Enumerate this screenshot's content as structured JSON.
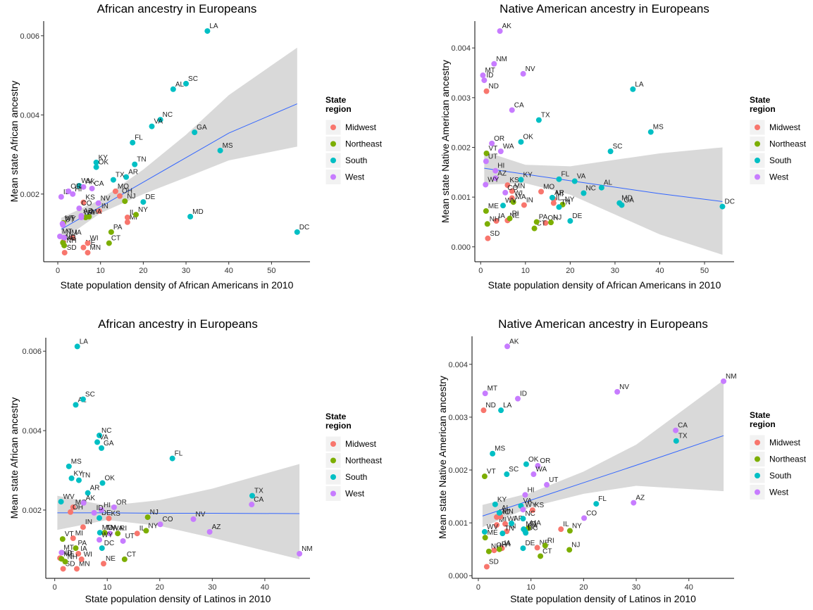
{
  "chart_data": [
    {
      "type": "scatter",
      "title": "African ancestry in Europeans",
      "x_label": "State population density of African Americans in 2010",
      "y_label": "Mean state African ancestry",
      "legend_title": "State region",
      "xlim": [
        -3.3,
        59
      ],
      "xticks": [
        0,
        10,
        20,
        30,
        40,
        50
      ],
      "ylim": [
        0.00029,
        0.00637
      ],
      "yticks": [
        0.002,
        0.004,
        0.006
      ],
      "series": [
        {
          "name": "Midwest",
          "color": "#F8766D",
          "labels": [
            "IL",
            "IN",
            "IA",
            "KS",
            "MI",
            "MN",
            "MO",
            "NE",
            "ND",
            "OH",
            "SD",
            "WI"
          ],
          "x": [
            16.3,
            9.7,
            3.5,
            6,
            16.3,
            7,
            13.5,
            6,
            1.3,
            14.5,
            1.6,
            7
          ],
          "values": [
            0.00141,
            0.00157,
            0.0009,
            0.00179,
            0.00129,
            0.00052,
            0.00207,
            0.00065,
            0.00079,
            0.00195,
            0.00052,
            0.00076
          ]
        },
        {
          "name": "Northeast",
          "color": "#7CAE00",
          "labels": [
            "CT",
            "ME",
            "MA",
            "NH",
            "NJ",
            "NY",
            "PA",
            "RI",
            "VT"
          ],
          "x": [
            12,
            1.2,
            7.3,
            1.5,
            15.7,
            18.3,
            12.5,
            6.5,
            1.3
          ],
          "values": [
            0.00076,
            0.00077,
            0.00143,
            0.0007,
            0.00182,
            0.00148,
            0.00104,
            0.00141,
            0.00127
          ]
        },
        {
          "name": "South",
          "color": "#00BFC4",
          "labels": [
            "AL",
            "AR",
            "DE",
            "DC",
            "FL",
            "GA",
            "KY",
            "LA",
            "MD",
            "MS",
            "NC",
            "OK",
            "SC",
            "TN",
            "TX",
            "VA",
            "WV"
          ],
          "x": [
            27,
            16,
            20,
            56,
            17.5,
            32,
            9,
            35,
            31,
            38,
            24,
            9,
            30,
            18,
            13,
            22,
            5
          ],
          "values": [
            0.00465,
            0.00243,
            0.0018,
            0.00104,
            0.0033,
            0.00356,
            0.0028,
            0.00612,
            0.00143,
            0.0031,
            0.00388,
            0.00268,
            0.00479,
            0.00275,
            0.00236,
            0.00371,
            0.00221
          ]
        },
        {
          "name": "West",
          "color": "#C77CFF",
          "labels": [
            "AK",
            "AZ",
            "CA",
            "CO",
            "HI",
            "ID",
            "MT",
            "NV",
            "NM",
            "OR",
            "UT",
            "WA",
            "WY"
          ],
          "x": [
            6,
            5.5,
            8,
            5,
            3.5,
            0.8,
            0.5,
            9.5,
            1.5,
            2.5,
            1.2,
            5.5,
            1.1
          ],
          "values": [
            0.00218,
            0.00145,
            0.00214,
            0.00164,
            0.002,
            0.00193,
            0.00093,
            0.00177,
            0.0009,
            0.00207,
            0.00122,
            0.00141,
            0.00125
          ]
        }
      ],
      "fit": {
        "x": [
          0.8,
          10,
          20,
          30,
          40,
          56
        ],
        "y": [
          0.00111,
          0.00168,
          0.0023,
          0.00292,
          0.00354,
          0.00428
        ],
        "lower": [
          0.00082,
          0.00152,
          0.002,
          0.00242,
          0.00285,
          0.0032
        ],
        "upper": [
          0.0014,
          0.00186,
          0.00262,
          0.0035,
          0.0045,
          0.0057
        ]
      }
    },
    {
      "type": "scatter",
      "title": "Native American ancestry in Europeans",
      "x_label": "State population density of African Americans in 2010",
      "y_label": "Mean state Native American ancestry",
      "legend_title": "State region",
      "xlim": [
        -1.3,
        56.6
      ],
      "xticks": [
        0,
        10,
        20,
        30,
        40,
        50
      ],
      "ylim": [
        -0.0003,
        0.00454
      ],
      "yticks": [
        {
          "value": 0,
          "label": "0.000"
        },
        0.001,
        0.002,
        0.003,
        0.004
      ],
      "series": [
        {
          "name": "Midwest",
          "color": "#F8766D",
          "labels": [
            "IL",
            "IN",
            "IA",
            "KS",
            "MI",
            "MN",
            "MO",
            "NE",
            "ND",
            "OH",
            "SD",
            "WI"
          ],
          "x": [
            16.3,
            9.7,
            3.5,
            6,
            16.3,
            7,
            13.5,
            6,
            1.3,
            14.5,
            1.6,
            7
          ],
          "values": [
            0.00088,
            0.00084,
            0.00052,
            0.00124,
            0.00096,
            0.00112,
            0.00111,
            0.00053,
            0.00313,
            0.00048,
            0.00017,
            0.00098
          ]
        },
        {
          "name": "Northeast",
          "color": "#7CAE00",
          "labels": [
            "CT",
            "ME",
            "MA",
            "NH",
            "NJ",
            "NY",
            "PA",
            "RI",
            "VT"
          ],
          "x": [
            12,
            1.2,
            7.3,
            1.5,
            15.7,
            18.3,
            12.5,
            6.5,
            1.3
          ],
          "values": [
            0.00037,
            0.00072,
            0.0009,
            0.00046,
            0.00049,
            0.00085,
            0.0005,
            0.00057,
            0.00188
          ]
        },
        {
          "name": "South",
          "color": "#00BFC4",
          "labels": [
            "AL",
            "AR",
            "DE",
            "DC",
            "FL",
            "GA",
            "KY",
            "LA",
            "MD",
            "MS",
            "NC",
            "OK",
            "SC",
            "TN",
            "TX",
            "VA",
            "WV"
          ],
          "x": [
            27,
            16,
            20,
            54,
            17.5,
            31.5,
            9,
            34,
            31,
            38,
            23,
            9,
            29,
            17.5,
            13,
            21,
            5
          ],
          "values": [
            0.00119,
            0.00099,
            0.00052,
            0.00081,
            0.00136,
            0.00084,
            0.00135,
            0.00317,
            0.00088,
            0.00231,
            0.00108,
            0.00211,
            0.00192,
            0.0008,
            0.00255,
            0.00132,
            0.00083
          ]
        },
        {
          "name": "West",
          "color": "#C77CFF",
          "labels": [
            "AK",
            "AZ",
            "CA",
            "CO",
            "HI",
            "ID",
            "MT",
            "NV",
            "NM",
            "OR",
            "UT",
            "WA",
            "WY"
          ],
          "x": [
            4.3,
            3.3,
            7,
            5.5,
            3.3,
            0.8,
            0.5,
            9.5,
            3,
            2.5,
            1.2,
            4.5,
            1.1
          ],
          "values": [
            0.00434,
            0.00138,
            0.00275,
            0.00109,
            0.00153,
            0.00335,
            0.00345,
            0.00348,
            0.00368,
            0.00208,
            0.00172,
            0.00192,
            0.00125
          ]
        }
      ],
      "fit": {
        "x": [
          0.8,
          10,
          20,
          30,
          40,
          54
        ],
        "y": [
          0.00158,
          0.00146,
          0.00133,
          0.0012,
          0.00107,
          0.00091
        ],
        "lower": [
          0.00125,
          0.00128,
          0.00105,
          0.00065,
          0.00025,
          -0.00016
        ],
        "upper": [
          0.00192,
          0.00165,
          0.00162,
          0.00175,
          0.00188,
          0.002
        ]
      }
    },
    {
      "type": "scatter",
      "title": "African ancestry in Europeans",
      "x_label": "State population density of Latinos in 2010",
      "y_label": "Mean state African ancestry",
      "legend_title": "State region",
      "xlim": [
        -1.7,
        48.6
      ],
      "xticks": [
        0,
        10,
        20,
        30,
        40
      ],
      "ylim": [
        0.00028,
        0.00634
      ],
      "yticks": [
        0.002,
        0.004,
        0.006
      ],
      "series": [
        {
          "name": "Midwest",
          "color": "#F8766D",
          "labels": [
            "IL",
            "IN",
            "IA",
            "KS",
            "MI",
            "MN",
            "MO",
            "NE",
            "ND",
            "OH",
            "SD",
            "WI"
          ],
          "x": [
            15.7,
            5.4,
            4.5,
            10.3,
            3.5,
            4.2,
            3.5,
            9.3,
            1.0,
            3.0,
            1.6,
            5.1
          ],
          "values": [
            0.00141,
            0.00157,
            0.0009,
            0.00179,
            0.00129,
            0.00052,
            0.00207,
            0.00065,
            0.00079,
            0.00195,
            0.00052,
            0.00076
          ]
        },
        {
          "name": "Northeast",
          "color": "#7CAE00",
          "labels": [
            "CT",
            "ME",
            "MA",
            "NH",
            "NJ",
            "NY",
            "PA",
            "RI",
            "VT"
          ],
          "x": [
            13.3,
            1.3,
            9.5,
            2.0,
            17.7,
            17.4,
            4.0,
            12.0,
            1.5
          ],
          "values": [
            0.00076,
            0.00077,
            0.00143,
            0.0007,
            0.00182,
            0.00148,
            0.00104,
            0.00141,
            0.00127
          ]
        },
        {
          "name": "South",
          "color": "#00BFC4",
          "labels": [
            "AL",
            "AR",
            "DE",
            "DC",
            "FL",
            "GA",
            "KY",
            "LA",
            "MD",
            "MS",
            "NC",
            "OK",
            "SC",
            "TN",
            "TX",
            "VA",
            "WV"
          ],
          "x": [
            4.0,
            6.3,
            8.5,
            9.0,
            22.4,
            8.9,
            3.2,
            4.3,
            8.6,
            2.7,
            8.5,
            9.1,
            5.4,
            4.6,
            37.6,
            8.1,
            1.2
          ],
          "values": [
            0.00465,
            0.00243,
            0.0018,
            0.00104,
            0.0033,
            0.00356,
            0.0028,
            0.00612,
            0.00143,
            0.0031,
            0.00388,
            0.00268,
            0.00479,
            0.00275,
            0.00236,
            0.00371,
            0.00221
          ]
        },
        {
          "name": "West",
          "color": "#C77CFF",
          "labels": [
            "AK",
            "AZ",
            "CA",
            "CO",
            "HI",
            "ID",
            "MT",
            "NV",
            "NM",
            "OR",
            "UT",
            "WA",
            "WY"
          ],
          "x": [
            5.5,
            29.5,
            37.5,
            20.1,
            8.9,
            7.5,
            1.3,
            26.4,
            46.6,
            11.3,
            13.0,
            10.5,
            8.5
          ],
          "values": [
            0.00218,
            0.00145,
            0.00214,
            0.00164,
            0.002,
            0.00193,
            0.00093,
            0.00177,
            0.0009,
            0.00207,
            0.00122,
            0.00141,
            0.00125
          ]
        }
      ],
      "fit": {
        "x": [
          0.5,
          10,
          20,
          30,
          46.6
        ],
        "y": [
          0.00193,
          0.00193,
          0.00192,
          0.00192,
          0.00191
        ],
        "lower": [
          0.0015,
          0.00175,
          0.0016,
          0.0013,
          0.00076
        ],
        "upper": [
          0.00236,
          0.00211,
          0.00225,
          0.00254,
          0.00316
        ]
      }
    },
    {
      "type": "scatter",
      "title": "Native American ancestry in Europeans",
      "x_label": "State population density of Latinos in 2010",
      "y_label": "Mean state Native American ancestry",
      "legend_title": "State region",
      "xlim": [
        -1.2,
        48.6
      ],
      "xticks": [
        0,
        10,
        20,
        30,
        40
      ],
      "ylim": [
        -5e-05,
        0.00453
      ],
      "yticks": [
        {
          "value": 0,
          "label": "0.000"
        },
        0.001,
        0.002,
        0.003,
        0.004
      ],
      "series": [
        {
          "name": "Midwest",
          "color": "#F8766D",
          "labels": [
            "IL",
            "IN",
            "IA",
            "KS",
            "MI",
            "MN",
            "MO",
            "NE",
            "ND",
            "OH",
            "SD",
            "WI"
          ],
          "x": [
            15.7,
            5.4,
            4.5,
            10.3,
            3.5,
            4.2,
            3.5,
            11.2,
            1.0,
            3.0,
            1.6,
            5.1
          ],
          "values": [
            0.00088,
            0.00084,
            0.00052,
            0.00124,
            0.00096,
            0.00112,
            0.00111,
            0.00053,
            0.00313,
            0.00048,
            0.00017,
            0.00098
          ]
        },
        {
          "name": "Northeast",
          "color": "#7CAE00",
          "labels": [
            "CT",
            "ME",
            "MA",
            "NH",
            "NJ",
            "NY",
            "PA",
            "RI",
            "VT"
          ],
          "x": [
            11.8,
            1.3,
            9.5,
            2.0,
            17.3,
            17.4,
            4.0,
            12.7,
            1.2
          ],
          "values": [
            0.00037,
            0.00072,
            0.0009,
            0.00046,
            0.00049,
            0.00085,
            0.0005,
            0.00057,
            0.00188
          ]
        },
        {
          "name": "South",
          "color": "#00BFC4",
          "labels": [
            "AL",
            "AR",
            "DE",
            "DC",
            "FL",
            "GA",
            "KY",
            "LA",
            "MD",
            "MS",
            "NC",
            "OK",
            "SC",
            "TN",
            "TX",
            "VA",
            "WV"
          ],
          "x": [
            4.0,
            6.3,
            8.5,
            9.0,
            22.4,
            8.9,
            3.2,
            4.3,
            8.6,
            2.7,
            8.5,
            9.1,
            5.4,
            4.6,
            37.6,
            8.1,
            1.2
          ],
          "values": [
            0.00119,
            0.00099,
            0.00052,
            0.00081,
            0.00136,
            0.00084,
            0.00135,
            0.00313,
            0.00088,
            0.00231,
            0.00108,
            0.00211,
            0.00192,
            0.0008,
            0.00255,
            0.00132,
            0.00083
          ]
        },
        {
          "name": "West",
          "color": "#C77CFF",
          "labels": [
            "AK",
            "AZ",
            "CA",
            "CO",
            "HI",
            "ID",
            "MT",
            "NV",
            "NM",
            "OR",
            "UT",
            "WA",
            "WY"
          ],
          "x": [
            5.5,
            29.5,
            37.5,
            20.1,
            8.9,
            7.5,
            1.3,
            26.4,
            46.6,
            11.3,
            13.0,
            10.5,
            8.5
          ],
          "values": [
            0.00434,
            0.00138,
            0.00275,
            0.00109,
            0.00153,
            0.00335,
            0.00345,
            0.00348,
            0.00368,
            0.00208,
            0.00172,
            0.00192,
            0.00125
          ]
        }
      ],
      "fit": {
        "x": [
          0.8,
          10,
          20,
          30,
          46.6
        ],
        "y": [
          0.00113,
          0.00143,
          0.00176,
          0.00209,
          0.00265
        ],
        "lower": [
          0.00092,
          0.0013,
          0.00155,
          0.0017,
          0.0016
        ],
        "upper": [
          0.00134,
          0.00157,
          0.00197,
          0.00248,
          0.0037
        ]
      }
    }
  ]
}
